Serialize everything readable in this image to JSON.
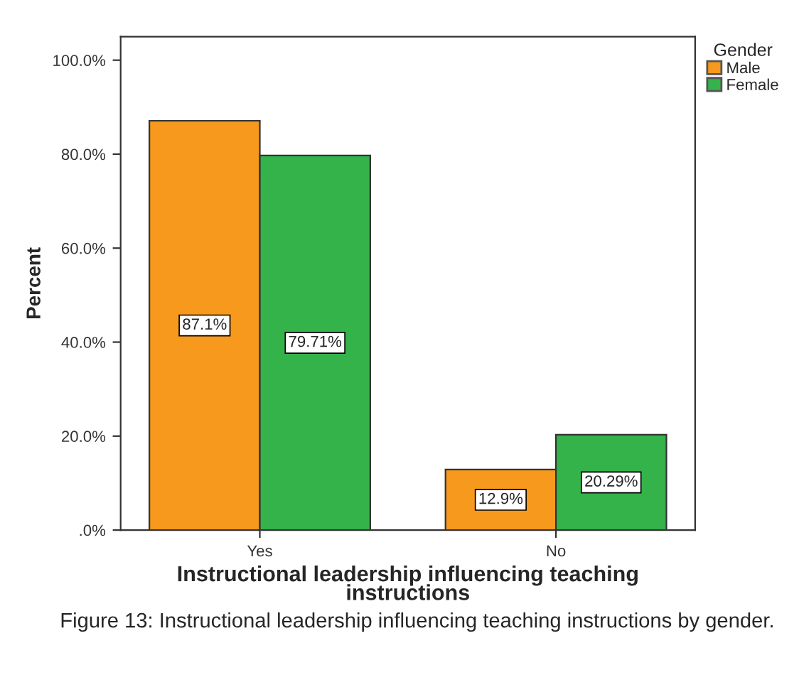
{
  "chart_data": {
    "type": "bar",
    "xlabel": "Instructional leadership influencing teaching\ninstructions",
    "ylabel": "Percent",
    "legend_title": "Gender",
    "categories": [
      "Yes",
      "No"
    ],
    "series": [
      {
        "name": "Male",
        "color": "#f7991c",
        "values": [
          87.1,
          12.9
        ],
        "value_labels": [
          "87.1%",
          "12.9%"
        ]
      },
      {
        "name": "Female",
        "color": "#33b34a",
        "values": [
          79.71,
          20.29
        ],
        "value_labels": [
          "79.71%",
          "20.29%"
        ]
      }
    ],
    "ylim": [
      0,
      105
    ],
    "yticks": [
      {
        "value": 0,
        "label": ".0%"
      },
      {
        "value": 20,
        "label": "20.0%"
      },
      {
        "value": 40,
        "label": "40.0%"
      },
      {
        "value": 60,
        "label": "60.0%"
      },
      {
        "value": 80,
        "label": "80.0%"
      },
      {
        "value": 100,
        "label": "100.0%"
      }
    ],
    "grid": false,
    "legend": "top right",
    "annotations": [
      "Figure 13: Instructional leadership influencing teaching instructions by gender."
    ]
  }
}
